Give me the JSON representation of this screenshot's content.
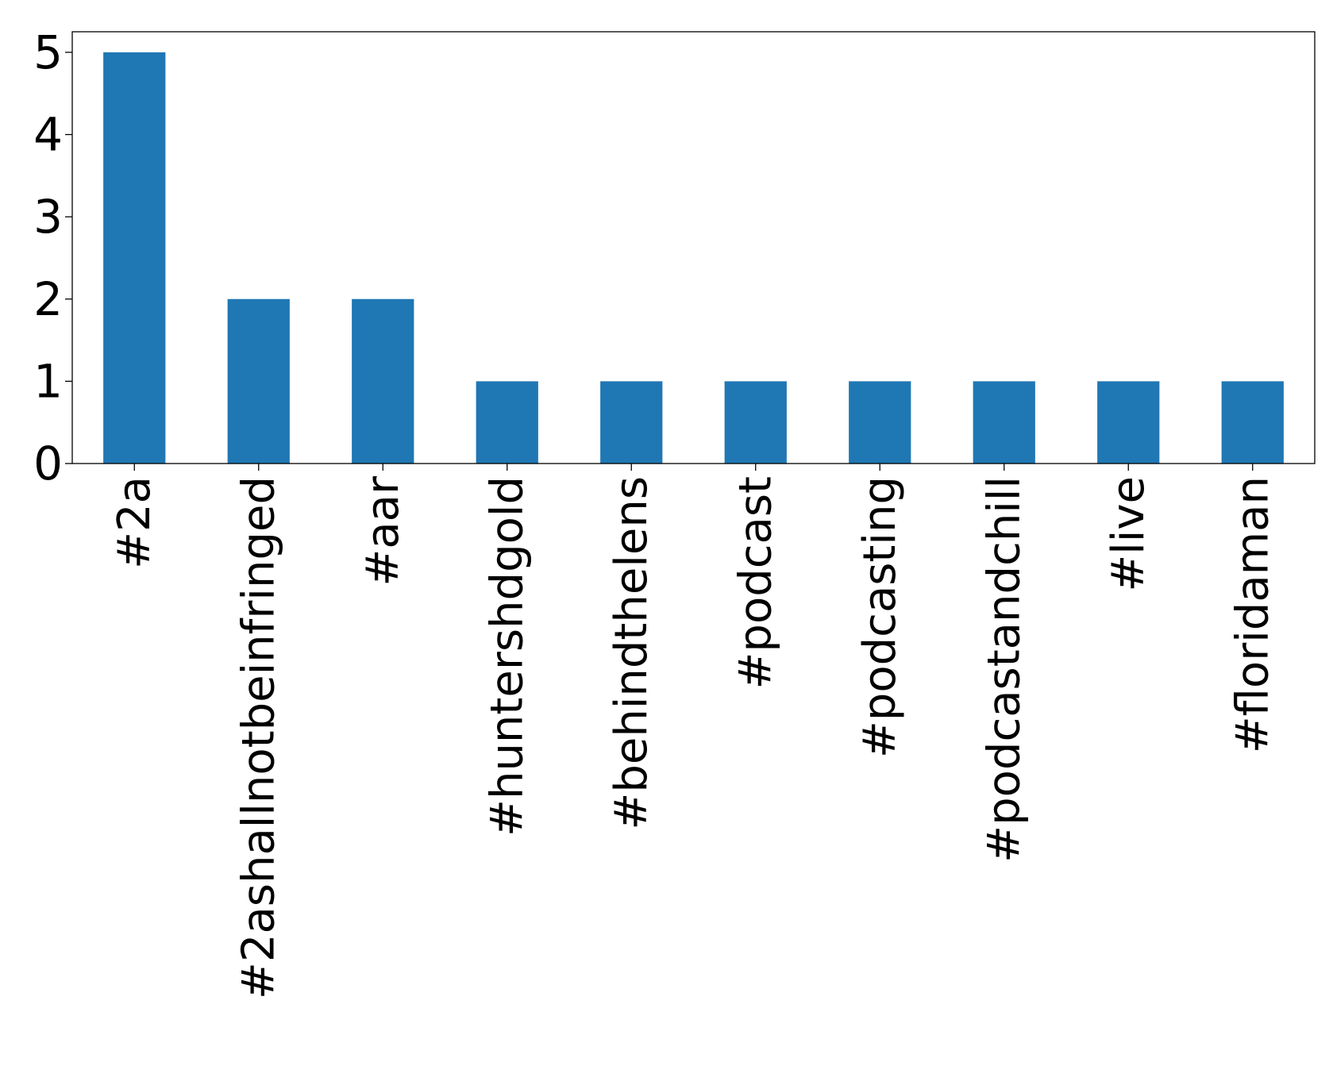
{
  "chart_data": {
    "type": "bar",
    "categories": [
      "#2a",
      "#2ashallnotbeinfringed",
      "#aar",
      "#huntershdgold",
      "#behindthelens",
      "#podcast",
      "#podcasting",
      "#podcastandchill",
      "#live",
      "#floridaman"
    ],
    "values": [
      5,
      2,
      2,
      1,
      1,
      1,
      1,
      1,
      1,
      1
    ],
    "title": "",
    "xlabel": "",
    "ylabel": "",
    "ylim": [
      0,
      5.25
    ],
    "yticks": [
      "0",
      "1",
      "2",
      "3",
      "4",
      "5"
    ],
    "grid": false,
    "legend": "none",
    "bar_color": "#1f77b4"
  }
}
